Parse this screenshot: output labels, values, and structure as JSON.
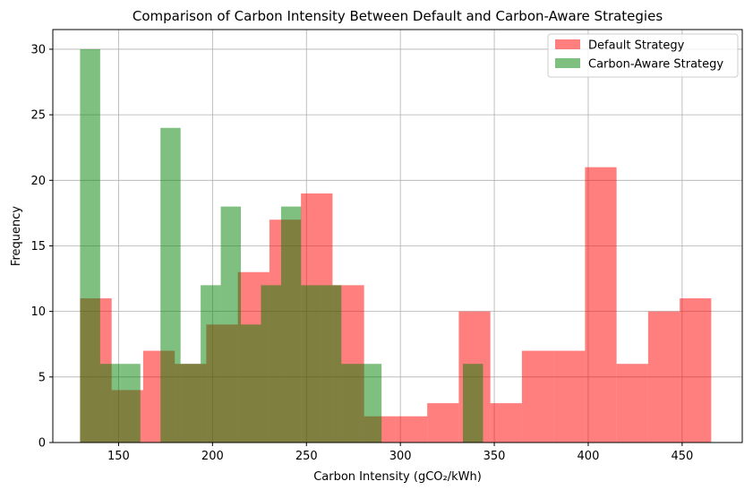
{
  "chart_data": {
    "type": "bar",
    "title": "Comparison of Carbon Intensity Between Default and Carbon-Aware Strategies",
    "xlabel": "Carbon Intensity (gCO₂/kWh)",
    "ylabel": "Frequency",
    "xlim": [
      115,
      482
    ],
    "ylim": [
      0,
      31.5
    ],
    "xticks": [
      150,
      200,
      250,
      300,
      350,
      400,
      450
    ],
    "yticks": [
      0,
      5,
      10,
      15,
      20,
      25,
      30
    ],
    "grid": true,
    "legend_position": "top-right",
    "series": [
      {
        "name": "Default Strategy",
        "color": "#ff0000",
        "opacity": 0.5,
        "bins": [
          [
            129.5,
            146.3,
            11
          ],
          [
            146.3,
            163.1,
            4
          ],
          [
            163.1,
            179.9,
            7
          ],
          [
            179.9,
            196.7,
            6
          ],
          [
            196.7,
            213.5,
            9
          ],
          [
            213.5,
            230.3,
            13
          ],
          [
            230.3,
            247.1,
            17
          ],
          [
            247.1,
            263.9,
            19
          ],
          [
            263.9,
            280.7,
            12
          ],
          [
            280.7,
            297.5,
            2
          ],
          [
            297.5,
            314.3,
            2
          ],
          [
            314.3,
            331.1,
            3
          ],
          [
            331.1,
            347.9,
            10
          ],
          [
            347.9,
            364.7,
            3
          ],
          [
            364.7,
            381.5,
            7
          ],
          [
            381.5,
            398.3,
            7
          ],
          [
            398.3,
            415.1,
            21
          ],
          [
            415.1,
            431.9,
            6
          ],
          [
            431.9,
            448.7,
            10
          ],
          [
            448.7,
            465.5,
            11
          ]
        ]
      },
      {
        "name": "Carbon-Aware Strategy",
        "color": "#008000",
        "opacity": 0.5,
        "bins": [
          [
            129.5,
            140.2,
            30
          ],
          [
            140.2,
            150.9,
            6
          ],
          [
            150.9,
            161.6,
            6
          ],
          [
            161.6,
            172.3,
            0
          ],
          [
            172.3,
            183.0,
            24
          ],
          [
            183.0,
            193.7,
            6
          ],
          [
            193.7,
            204.4,
            12
          ],
          [
            204.4,
            215.1,
            18
          ],
          [
            215.1,
            225.8,
            9
          ],
          [
            225.8,
            236.5,
            12
          ],
          [
            236.5,
            247.2,
            18
          ],
          [
            247.2,
            257.9,
            12
          ],
          [
            257.9,
            268.6,
            12
          ],
          [
            268.6,
            279.3,
            6
          ],
          [
            279.3,
            290.0,
            6
          ],
          [
            290.0,
            333.3,
            0
          ],
          [
            333.3,
            344.0,
            6
          ]
        ]
      }
    ]
  }
}
